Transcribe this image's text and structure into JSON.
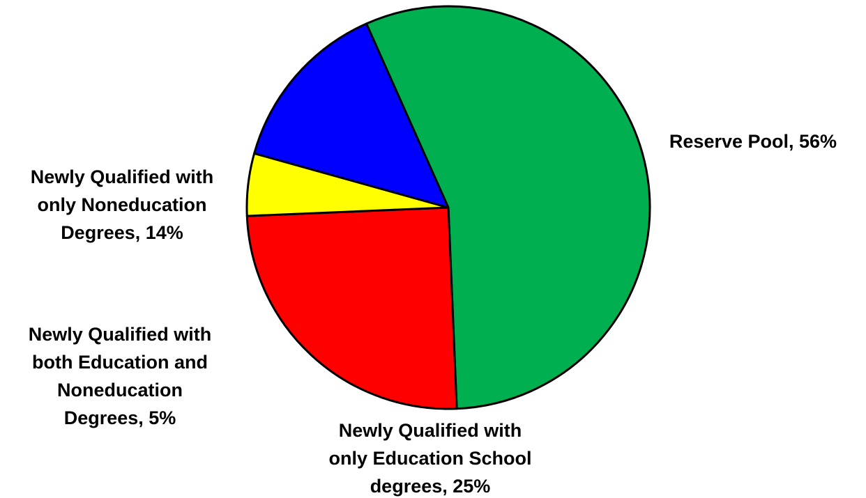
{
  "chart_data": {
    "type": "pie",
    "slices": [
      {
        "label": "Reserve Pool",
        "value": 56,
        "color": "#00B050",
        "label_lines": [
          "Reserve Pool, 56%"
        ]
      },
      {
        "label": "Newly Qualified with only Education School degrees",
        "value": 25,
        "color": "#FF0000",
        "label_lines": [
          "Newly Qualified with",
          "only Education School",
          "degrees, 25%"
        ]
      },
      {
        "label": "Newly Qualified with both Education and Noneducation Degrees",
        "value": 5,
        "color": "#FFFF00",
        "label_lines": [
          "Newly Qualified with",
          "both Education and",
          "Noneducation",
          "Degrees, 5%"
        ]
      },
      {
        "label": "Newly Qualified with only Noneducation Degrees",
        "value": 14,
        "color": "#0000FF",
        "label_lines": [
          "Newly Qualified with",
          "only Noneducation",
          "Degrees, 14%"
        ]
      }
    ],
    "start_angle_deg": -24,
    "direction": "clockwise",
    "legend": "none"
  }
}
